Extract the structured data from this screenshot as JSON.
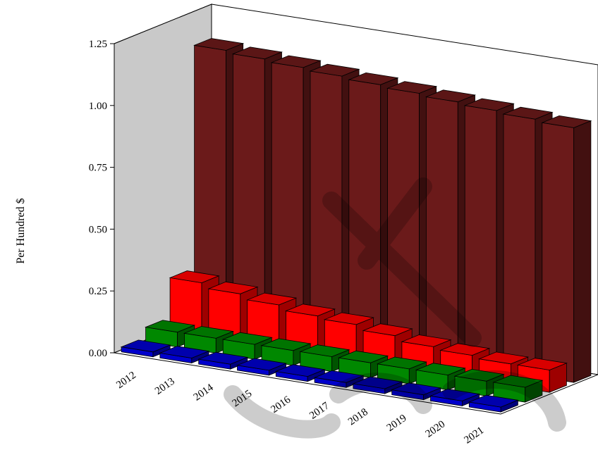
{
  "chart_data": {
    "type": "bar",
    "title": "",
    "xlabel": "",
    "ylabel": "Per Hundred $",
    "ylim": [
      0,
      1.25
    ],
    "yticks": [
      "0.00",
      "0.25",
      "0.50",
      "0.75",
      "1.00",
      "1.25"
    ],
    "categories": [
      "2012",
      "2013",
      "2014",
      "2015",
      "2016",
      "2017",
      "2018",
      "2019",
      "2020",
      "2021"
    ],
    "grid": false,
    "legend": "none",
    "series": [
      {
        "color": "#0000cc",
        "values": [
          0.02,
          0.02,
          0.02,
          0.02,
          0.02,
          0.02,
          0.02,
          0.02,
          0.02,
          0.02
        ]
      },
      {
        "color": "#008800",
        "values": [
          0.06,
          0.06,
          0.06,
          0.06,
          0.06,
          0.06,
          0.06,
          0.06,
          0.06,
          0.06
        ]
      },
      {
        "color": "#ff0000",
        "values": [
          0.22,
          0.2,
          0.18,
          0.16,
          0.15,
          0.13,
          0.11,
          0.1,
          0.09,
          0.09
        ]
      },
      {
        "color": "#6b1a1a",
        "values": [
          1.12,
          1.11,
          1.1,
          1.09,
          1.08,
          1.07,
          1.06,
          1.05,
          1.04,
          1.03
        ]
      }
    ]
  }
}
